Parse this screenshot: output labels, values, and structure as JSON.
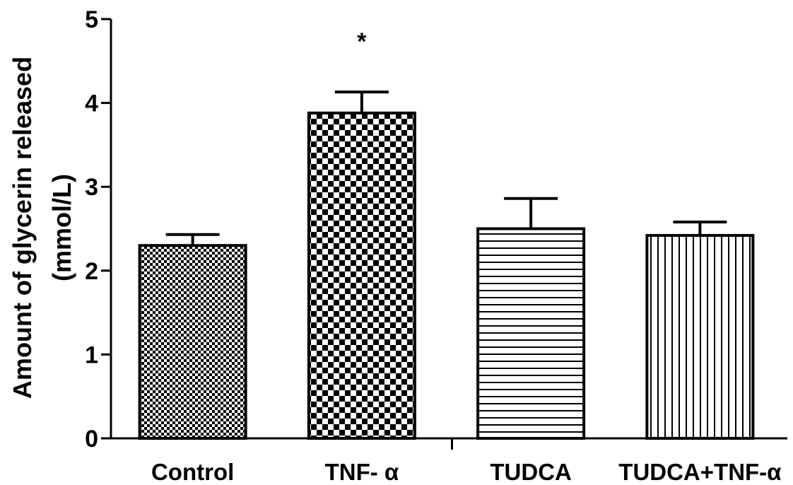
{
  "chart_data": {
    "type": "bar",
    "categories": [
      "Control",
      "TNF- α",
      "TUDCA",
      "TUDCA+TNF-α"
    ],
    "values": [
      2.3,
      3.88,
      2.5,
      2.42
    ],
    "errors": [
      0.13,
      0.25,
      0.36,
      0.16
    ],
    "patterns": [
      "fine-checker",
      "coarse-checker",
      "horizontal-stripes",
      "vertical-stripes"
    ],
    "annotations": [
      "",
      "*",
      "",
      ""
    ],
    "ylabel_line1": "Amount of glycerin released",
    "ylabel_line2": "(mmol/L)",
    "xlabel": "",
    "ylim": [
      0,
      5
    ],
    "yticks": [
      "0",
      "1",
      "2",
      "3",
      "4",
      "5"
    ],
    "grid": false,
    "bar_color": "#000000",
    "background": "#ffffff"
  }
}
